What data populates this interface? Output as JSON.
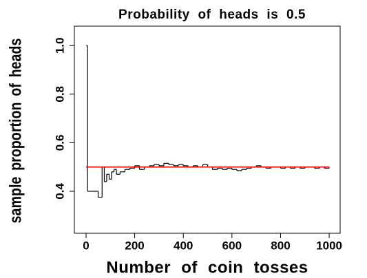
{
  "chart_data": {
    "type": "step",
    "title": "Probability of heads is 0.5",
    "x_label": "Number of coin tosses",
    "y_label": "sample proportion of heads",
    "x": [
      1,
      6,
      20,
      40,
      50,
      60,
      66,
      75,
      85,
      95,
      105,
      115,
      125,
      140,
      160,
      180,
      200,
      220,
      240,
      260,
      280,
      300,
      320,
      340,
      360,
      380,
      400,
      420,
      440,
      460,
      480,
      500,
      520,
      540,
      560,
      580,
      600,
      620,
      640,
      660,
      680,
      700,
      720,
      740,
      760,
      780,
      800,
      820,
      840,
      860,
      880,
      900,
      920,
      940,
      960,
      980,
      1000
    ],
    "series": [
      {
        "color": "#000000",
        "values": [
          1.0,
          0.4,
          0.4,
          0.4,
          0.375,
          0.375,
          0.5,
          0.44,
          0.47,
          0.45,
          0.48,
          0.49,
          0.47,
          0.48,
          0.49,
          0.495,
          0.505,
          0.49,
          0.5,
          0.505,
          0.51,
          0.505,
          0.515,
          0.51,
          0.505,
          0.51,
          0.505,
          0.5,
          0.505,
          0.5,
          0.51,
          0.5,
          0.49,
          0.495,
          0.49,
          0.495,
          0.49,
          0.485,
          0.49,
          0.495,
          0.5,
          0.505,
          0.5,
          0.495,
          0.5,
          0.5,
          0.495,
          0.5,
          0.495,
          0.5,
          0.495,
          0.5,
          0.5,
          0.495,
          0.5,
          0.495,
          0.497
        ]
      }
    ],
    "reference_line": {
      "y": 0.5,
      "x": [
        0,
        1000
      ],
      "color": "#ff0000"
    },
    "xlim": [
      -48,
      1045
    ],
    "ylim": [
      0.227,
      1.08
    ],
    "xticks": [
      0,
      200,
      400,
      600,
      800,
      1000
    ],
    "yticks": [
      0.4,
      0.6,
      0.8,
      {
        "value": 1.0,
        "label": "1.0"
      }
    ]
  }
}
